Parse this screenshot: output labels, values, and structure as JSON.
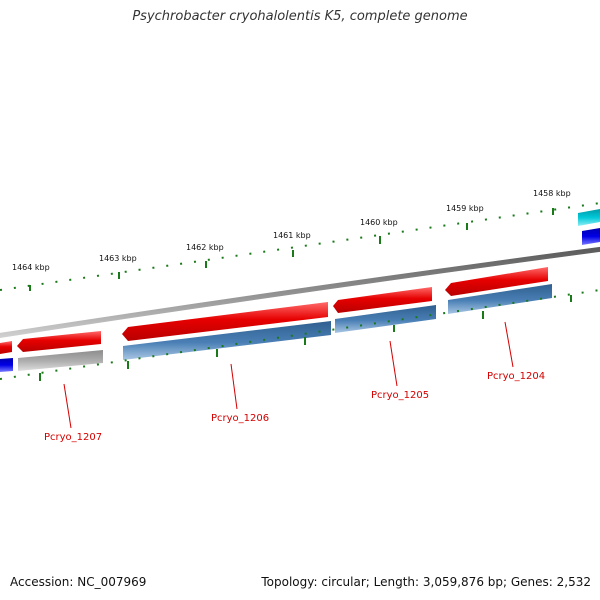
{
  "title": "Psychrobacter cryohalolentis K5, complete genome",
  "footer": {
    "accession": "Accession: NC_007969",
    "summary": "Topology: circular; Length: 3,059,876 bp; Genes: 2,532"
  },
  "kbp_labels": [
    "1464 kbp",
    "1463 kbp",
    "1462 kbp",
    "1461 kbp",
    "1460 kbp",
    "1459 kbp",
    "1458 kbp"
  ],
  "gene_labels": [
    "Pcryo_1207",
    "Pcryo_1206",
    "Pcryo_1205",
    "Pcryo_1204"
  ],
  "colors": {
    "backbone": "#808080",
    "forward_gene": "#e60000",
    "cds_feature": "#4a7fb5",
    "grey_feature": "#b0b0b0",
    "blue_feature": "#0000e6",
    "cyan_feature": "#00b8c8",
    "tick": "#1a7a1a",
    "label": "#d40000"
  }
}
